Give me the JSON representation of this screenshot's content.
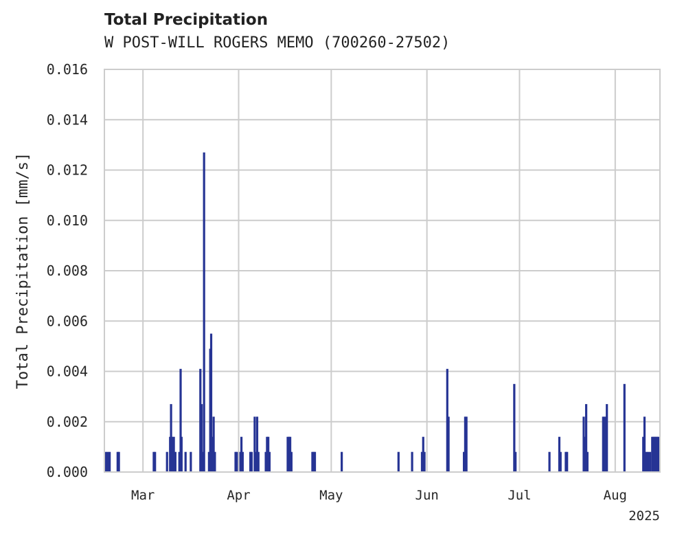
{
  "chart_data": {
    "type": "bar",
    "title": "Total Precipitation",
    "subtitle": "W POST-WILL ROGERS MEMO (700260-27502)",
    "xlabel": "",
    "ylabel": "Total Precipitation [mm/s]",
    "ylim": [
      0,
      0.016
    ],
    "y_ticks": [
      "0.000",
      "0.002",
      "0.004",
      "0.006",
      "0.008",
      "0.010",
      "0.012",
      "0.014",
      "0.016"
    ],
    "x_ticks": [
      {
        "label": "Mar",
        "day": 28
      },
      {
        "label": "Apr",
        "day": 59
      },
      {
        "label": "May",
        "day": 89
      },
      {
        "label": "Jun",
        "day": 120
      },
      {
        "label": "Jul",
        "day": 150
      },
      {
        "label": "Aug",
        "day": 181
      }
    ],
    "year_label": "2025",
    "xlim_days": [
      15.5,
      195.5
    ],
    "x_unit": "days since 2025-02-01",
    "grid": true,
    "legend": "none",
    "bar_color": "#263494",
    "series": [
      {
        "name": "Total Precipitation",
        "points": [
          {
            "x": 16.0,
            "y": 0.0008
          },
          {
            "x": 16.6,
            "y": 0.0008
          },
          {
            "x": 17.2,
            "y": 0.0008
          },
          {
            "x": 19.8,
            "y": 0.0008
          },
          {
            "x": 20.2,
            "y": 0.0008
          },
          {
            "x": 31.5,
            "y": 0.0008
          },
          {
            "x": 31.9,
            "y": 0.0008
          },
          {
            "x": 35.8,
            "y": 0.0008
          },
          {
            "x": 36.8,
            "y": 0.0014
          },
          {
            "x": 37.1,
            "y": 0.0027
          },
          {
            "x": 37.5,
            "y": 0.0014
          },
          {
            "x": 38.0,
            "y": 0.0014
          },
          {
            "x": 38.5,
            "y": 0.0008
          },
          {
            "x": 39.8,
            "y": 0.0008
          },
          {
            "x": 40.2,
            "y": 0.0041
          },
          {
            "x": 40.5,
            "y": 0.0014
          },
          {
            "x": 41.8,
            "y": 0.0008
          },
          {
            "x": 43.5,
            "y": 0.0008
          },
          {
            "x": 46.6,
            "y": 0.0041
          },
          {
            "x": 47.0,
            "y": 0.0027
          },
          {
            "x": 47.4,
            "y": 0.0008
          },
          {
            "x": 47.8,
            "y": 0.0127
          },
          {
            "x": 49.4,
            "y": 0.0008
          },
          {
            "x": 49.8,
            "y": 0.0049
          },
          {
            "x": 50.1,
            "y": 0.0055
          },
          {
            "x": 50.5,
            "y": 0.0014
          },
          {
            "x": 50.9,
            "y": 0.0022
          },
          {
            "x": 51.3,
            "y": 0.0008
          },
          {
            "x": 58.0,
            "y": 0.0008
          },
          {
            "x": 58.4,
            "y": 0.0008
          },
          {
            "x": 59.6,
            "y": 0.0008
          },
          {
            "x": 59.9,
            "y": 0.0014
          },
          {
            "x": 60.3,
            "y": 0.0008
          },
          {
            "x": 62.8,
            "y": 0.0008
          },
          {
            "x": 63.2,
            "y": 0.0008
          },
          {
            "x": 64.2,
            "y": 0.0022
          },
          {
            "x": 64.6,
            "y": 0.0008
          },
          {
            "x": 65.0,
            "y": 0.0022
          },
          {
            "x": 65.4,
            "y": 0.0008
          },
          {
            "x": 67.8,
            "y": 0.0008
          },
          {
            "x": 68.2,
            "y": 0.0014
          },
          {
            "x": 68.6,
            "y": 0.0014
          },
          {
            "x": 69.0,
            "y": 0.0008
          },
          {
            "x": 74.9,
            "y": 0.0014
          },
          {
            "x": 75.3,
            "y": 0.0014
          },
          {
            "x": 75.7,
            "y": 0.0014
          },
          {
            "x": 76.1,
            "y": 0.0008
          },
          {
            "x": 82.9,
            "y": 0.0008
          },
          {
            "x": 83.3,
            "y": 0.0008
          },
          {
            "x": 83.7,
            "y": 0.0008
          },
          {
            "x": 92.4,
            "y": 0.0008
          },
          {
            "x": 110.8,
            "y": 0.0008
          },
          {
            "x": 115.2,
            "y": 0.0008
          },
          {
            "x": 118.4,
            "y": 0.0008
          },
          {
            "x": 118.8,
            "y": 0.0014
          },
          {
            "x": 119.2,
            "y": 0.0008
          },
          {
            "x": 126.6,
            "y": 0.0041
          },
          {
            "x": 127.0,
            "y": 0.0022
          },
          {
            "x": 132.0,
            "y": 0.0008
          },
          {
            "x": 132.4,
            "y": 0.0022
          },
          {
            "x": 132.8,
            "y": 0.0022
          },
          {
            "x": 148.3,
            "y": 0.0035
          },
          {
            "x": 148.7,
            "y": 0.0008
          },
          {
            "x": 159.7,
            "y": 0.0008
          },
          {
            "x": 162.9,
            "y": 0.0014
          },
          {
            "x": 163.3,
            "y": 0.0008
          },
          {
            "x": 165.0,
            "y": 0.0008
          },
          {
            "x": 165.4,
            "y": 0.0008
          },
          {
            "x": 170.8,
            "y": 0.0022
          },
          {
            "x": 171.2,
            "y": 0.0014
          },
          {
            "x": 171.6,
            "y": 0.0027
          },
          {
            "x": 172.0,
            "y": 0.0008
          },
          {
            "x": 177.1,
            "y": 0.0022
          },
          {
            "x": 177.5,
            "y": 0.0022
          },
          {
            "x": 177.9,
            "y": 0.0022
          },
          {
            "x": 178.3,
            "y": 0.0027
          },
          {
            "x": 184.0,
            "y": 0.0035
          },
          {
            "x": 190.1,
            "y": 0.0014
          },
          {
            "x": 190.5,
            "y": 0.0022
          },
          {
            "x": 191.0,
            "y": 0.0008
          },
          {
            "x": 191.6,
            "y": 0.0008
          },
          {
            "x": 192.3,
            "y": 0.0008
          },
          {
            "x": 193.0,
            "y": 0.0014
          },
          {
            "x": 193.4,
            "y": 0.0014
          },
          {
            "x": 193.8,
            "y": 0.0014
          },
          {
            "x": 194.2,
            "y": 0.0014
          },
          {
            "x": 194.6,
            "y": 0.0014
          },
          {
            "x": 195.0,
            "y": 0.0014
          }
        ]
      }
    ]
  }
}
